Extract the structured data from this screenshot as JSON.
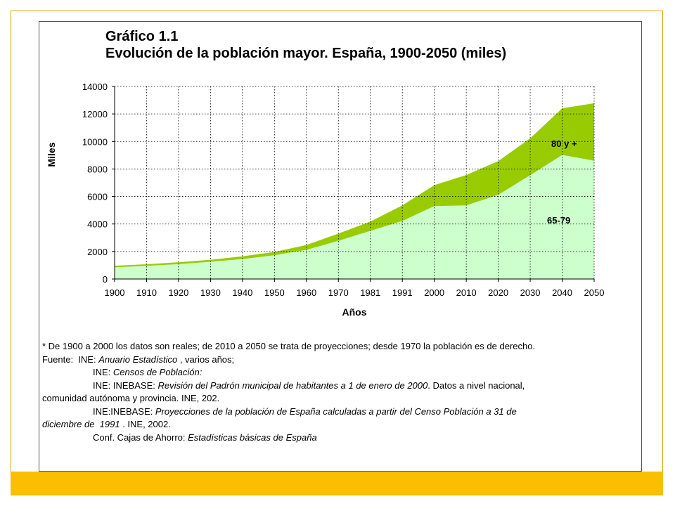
{
  "title": {
    "line1": "Gráfico 1.1",
    "line2": "Evolución de la población mayor. España, 1900-2050 (miles)"
  },
  "chart_data": {
    "type": "area",
    "stacked": true,
    "x": [
      "1900",
      "1910",
      "1920",
      "1930",
      "1940",
      "1950",
      "1960",
      "1970",
      "1981",
      "1991",
      "2000",
      "2010",
      "2020",
      "2030",
      "2040",
      "2050"
    ],
    "series": [
      {
        "name": "65-79",
        "color": "#ccffcc",
        "values": [
          850,
          960,
          1080,
          1250,
          1450,
          1730,
          2120,
          2780,
          3500,
          4220,
          5300,
          5350,
          6120,
          7550,
          9020,
          8600
        ]
      },
      {
        "name": "80 y +",
        "color": "#99cc00",
        "values": [
          115,
          115,
          140,
          150,
          200,
          240,
          350,
          520,
          680,
          1130,
          1520,
          2210,
          2450,
          2680,
          3390,
          4180
        ]
      }
    ],
    "xlabel": "Años",
    "ylabel": "Miles",
    "ylim": [
      0,
      14000
    ],
    "yticks": [
      0,
      2000,
      4000,
      6000,
      8000,
      10000,
      12000,
      14000
    ],
    "grid": true,
    "legend": "labels on areas"
  },
  "notes": {
    "line1": "* De 1900 a 2000 los datos son reales; de 2010 a 2050 se trata de proyecciones; desde 1970 la población es de derecho.",
    "fuente_prefix": "Fuente:  INE: ",
    "fuente_italic": "Anuario Estadístico",
    "fuente_suffix": " , varios años;",
    "censos_prefix": "INE: ",
    "censos_italic": "Censos de Población:",
    "inebase1_prefix": "INE: INEBASE: ",
    "inebase1_italic": "Revisión del Padrón municipal de habitantes a 1 de enero de 2000",
    "inebase1_suffix": ". Datos a nivel nacional,",
    "inebase1_cont": "comunidad autónoma y provincia. INE, 202.",
    "inebase2_prefix": "INE:INEBASE: ",
    "inebase2_italic": "Proyecciones de la población de España calculadas a partir del Censo Población a 31 de",
    "inebase2_cont_italic": "diciembre de  1991",
    "inebase2_cont_suffix": " . INE, 2002.",
    "cajas_prefix": "Conf. Cajas de Ahorro: ",
    "cajas_italic": "Estadísticas básicas de España"
  }
}
